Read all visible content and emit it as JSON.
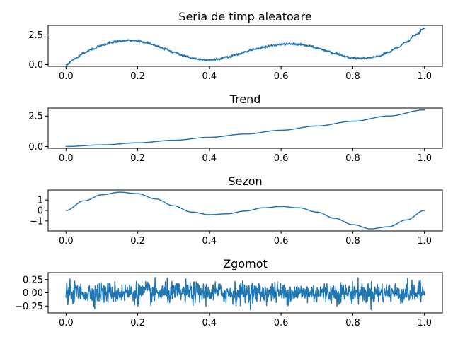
{
  "chart_data": [
    {
      "type": "line",
      "title": "Seria de timp aleatoare",
      "xlim": [
        -0.05,
        1.05
      ],
      "ylim": [
        -0.15,
        3.3
      ],
      "xticks": [
        0.0,
        0.2,
        0.4,
        0.6,
        0.8,
        1.0
      ],
      "xtick_labels": [
        "0.0",
        "0.2",
        "0.4",
        "0.6",
        "0.8",
        "1.0"
      ],
      "yticks": [
        0.0,
        2.5
      ],
      "ytick_labels": [
        "0.0",
        "2.5"
      ],
      "grid": false,
      "color": "#1f77b4",
      "series": [
        {
          "x": [
            0.0,
            0.025,
            0.05,
            0.075,
            0.1,
            0.125,
            0.15,
            0.175,
            0.2,
            0.225,
            0.25,
            0.275,
            0.3,
            0.325,
            0.35,
            0.375,
            0.4,
            0.425,
            0.45,
            0.475,
            0.5,
            0.525,
            0.55,
            0.575,
            0.6,
            0.625,
            0.65,
            0.675,
            0.7,
            0.725,
            0.75,
            0.775,
            0.8,
            0.825,
            0.85,
            0.875,
            0.9,
            0.925,
            0.95,
            0.975,
            1.0
          ],
          "y": [
            0.0,
            0.48,
            0.98,
            1.32,
            1.62,
            1.86,
            1.98,
            2.02,
            1.98,
            1.84,
            1.62,
            1.35,
            1.05,
            0.78,
            0.57,
            0.44,
            0.4,
            0.46,
            0.62,
            0.83,
            1.06,
            1.28,
            1.46,
            1.6,
            1.7,
            1.74,
            1.7,
            1.58,
            1.4,
            1.18,
            0.94,
            0.72,
            0.57,
            0.52,
            0.57,
            0.74,
            1.03,
            1.43,
            1.92,
            2.48,
            3.05
          ],
          "noise": "high-frequency jitter, amplitude about 0.1"
        }
      ]
    },
    {
      "type": "line",
      "title": "Trend",
      "xlim": [
        -0.05,
        1.05
      ],
      "ylim": [
        -0.15,
        3.15
      ],
      "xticks": [
        0.0,
        0.2,
        0.4,
        0.6,
        0.8,
        1.0
      ],
      "xtick_labels": [
        "0.0",
        "0.2",
        "0.4",
        "0.6",
        "0.8",
        "1.0"
      ],
      "yticks": [
        0.0,
        2.5
      ],
      "ytick_labels": [
        "0.0",
        "2.5"
      ],
      "grid": false,
      "color": "#1f77b4",
      "series": [
        {
          "x": [
            0.0,
            0.1,
            0.2,
            0.3,
            0.4,
            0.5,
            0.6,
            0.7,
            0.8,
            0.9,
            1.0
          ],
          "y": [
            0.0,
            0.13,
            0.3,
            0.51,
            0.75,
            1.02,
            1.33,
            1.68,
            2.07,
            2.5,
            3.0
          ]
        }
      ]
    },
    {
      "type": "line",
      "title": "Sezon",
      "xlim": [
        -0.05,
        1.05
      ],
      "ylim": [
        -1.95,
        1.95
      ],
      "xticks": [
        0.0,
        0.2,
        0.4,
        0.6,
        0.8,
        1.0
      ],
      "xtick_labels": [
        "0.0",
        "0.2",
        "0.4",
        "0.6",
        "0.8",
        "1.0"
      ],
      "yticks": [
        1,
        0,
        -1
      ],
      "ytick_labels": [
        "1",
        "0",
        "−1"
      ],
      "grid": false,
      "color": "#1f77b4",
      "series": [
        {
          "x": [
            0.0,
            0.05,
            0.1,
            0.15,
            0.2,
            0.25,
            0.3,
            0.35,
            0.4,
            0.45,
            0.5,
            0.55,
            0.6,
            0.65,
            0.7,
            0.75,
            0.8,
            0.85,
            0.9,
            0.95,
            1.0
          ],
          "y": [
            0.0,
            0.92,
            1.5,
            1.74,
            1.6,
            1.1,
            0.45,
            -0.15,
            -0.4,
            -0.32,
            -0.05,
            0.25,
            0.38,
            0.25,
            -0.15,
            -0.75,
            -1.35,
            -1.75,
            -1.55,
            -0.9,
            0.0
          ]
        }
      ]
    },
    {
      "type": "line",
      "title": "Zgomot",
      "xlim": [
        -0.05,
        1.05
      ],
      "ylim": [
        -0.38,
        0.38
      ],
      "xticks": [
        0.0,
        0.2,
        0.4,
        0.6,
        0.8,
        1.0
      ],
      "xtick_labels": [
        "0.0",
        "0.2",
        "0.4",
        "0.6",
        "0.8",
        "1.0"
      ],
      "yticks": [
        0.25,
        0.0,
        -0.25
      ],
      "ytick_labels": [
        "0.25",
        "0.00",
        "−0.25"
      ],
      "grid": false,
      "color": "#1f77b4",
      "series": [
        {
          "x_range": [
            0.0,
            1.0
          ],
          "points": 1000,
          "mean": 0.0,
          "std": 0.1,
          "min": -0.32,
          "max": 0.31
        }
      ]
    }
  ]
}
